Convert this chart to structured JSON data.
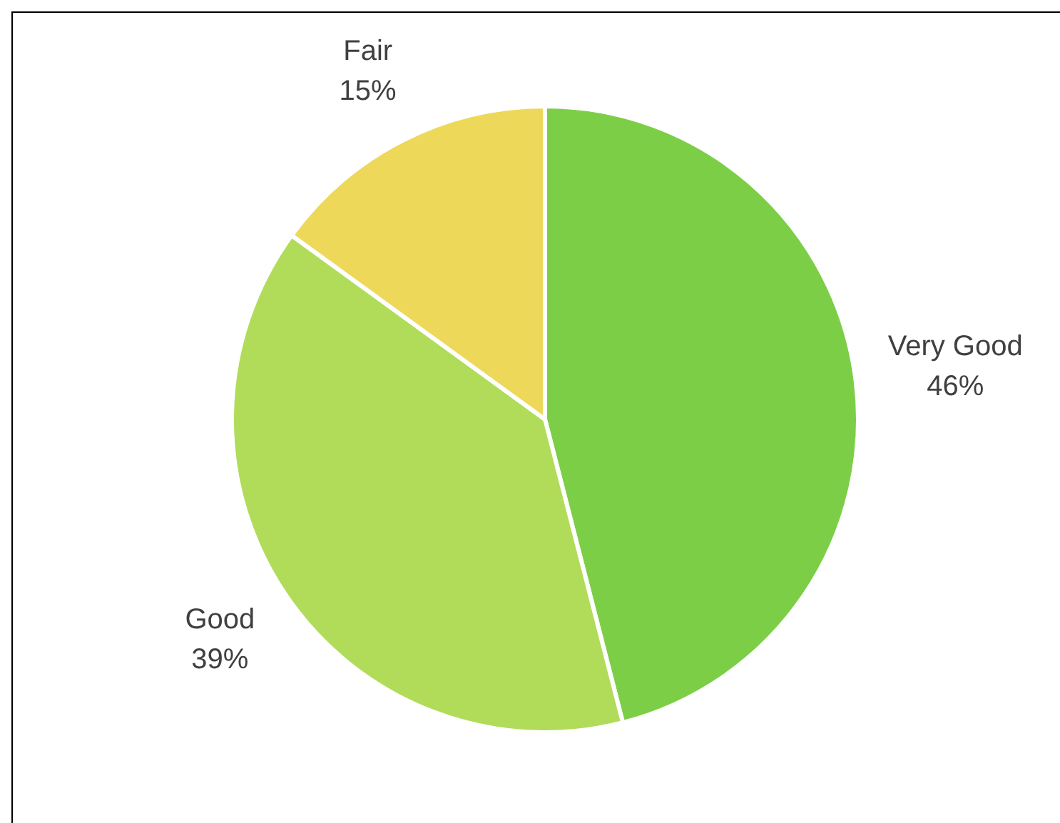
{
  "chart_data": {
    "type": "pie",
    "categories": [
      "Very Good",
      "Good",
      "Fair"
    ],
    "values": [
      46,
      39,
      15
    ],
    "colors": [
      "#7dce47",
      "#b1dc5a",
      "#edd85a"
    ],
    "value_labels": [
      "46%",
      "39%",
      "15%"
    ],
    "legend": false
  }
}
